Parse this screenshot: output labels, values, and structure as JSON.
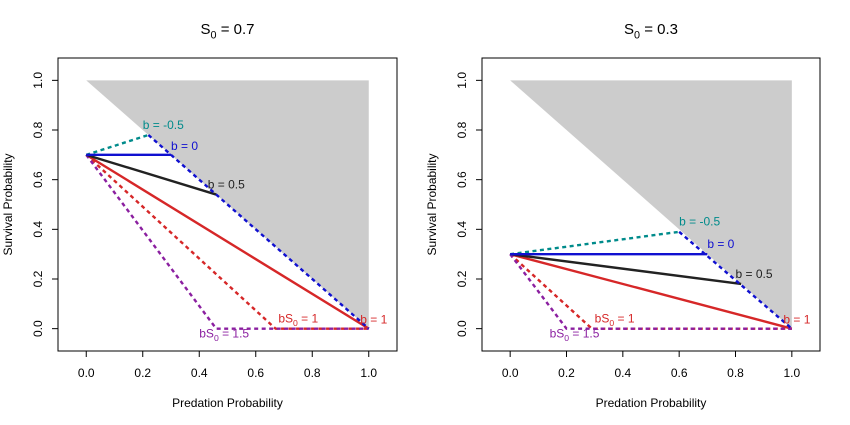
{
  "chart_data": [
    {
      "type": "line",
      "title_main": "S",
      "title_sub": "0",
      "title_rest": " = 0.7",
      "xlabel": "Predation Probability",
      "ylabel": "Survival Probability",
      "xlim": [
        -0.1,
        1.1
      ],
      "ylim": [
        -0.09,
        1.09
      ],
      "xticks": [
        "0.0",
        "0.2",
        "0.4",
        "0.6",
        "0.8",
        "1.0"
      ],
      "yticks": [
        "0.0",
        "0.2",
        "0.4",
        "0.6",
        "0.8",
        "1.0"
      ],
      "grid": false,
      "shaded_region": {
        "color": "#cccccc",
        "points": [
          [
            0,
            1
          ],
          [
            1,
            1
          ],
          [
            1,
            0
          ]
        ]
      },
      "series": [
        {
          "color": "#d62728",
          "style": "solid",
          "points": [
            [
              0,
              0.7
            ],
            [
              1,
              0
            ]
          ]
        },
        {
          "color": "#d62728",
          "style": "dashed",
          "points": [
            [
              0,
              0.7
            ],
            [
              0.67,
              0
            ],
            [
              1,
              0
            ]
          ]
        },
        {
          "color": "#8b1fa0",
          "style": "dashed",
          "points": [
            [
              0,
              0.7
            ],
            [
              0.46,
              0
            ],
            [
              1,
              0
            ]
          ]
        },
        {
          "color": "#222222",
          "style": "solid",
          "points": [
            [
              0,
              0.7
            ],
            [
              0.46,
              0.54
            ]
          ]
        },
        {
          "color": "#008b8b",
          "style": "dashed",
          "points": [
            [
              0,
              0.7
            ],
            [
              0.22,
              0.78
            ]
          ]
        },
        {
          "color": "#1010d0",
          "style": "solid",
          "points": [
            [
              0,
              0.7
            ],
            [
              0.3,
              0.7
            ]
          ]
        },
        {
          "color": "#1010d0",
          "style": "dashed",
          "points": [
            [
              0.22,
              0.78
            ],
            [
              1,
              0
            ]
          ]
        }
      ],
      "annotations": [
        {
          "text": "b = -0.5",
          "x": 0.2,
          "y": 0.805,
          "color": "#008b8b"
        },
        {
          "text": "b = 0",
          "x": 0.3,
          "y": 0.72,
          "color": "#1010d0"
        },
        {
          "text": "b = 0.5",
          "x": 0.43,
          "y": 0.565,
          "color": "#222222"
        },
        {
          "text": "b = 1",
          "x": 0.97,
          "y": 0.02,
          "color": "#d62728"
        }
      ],
      "sub_annotations": [
        {
          "main": "bS",
          "sub": "0",
          "rest": " = 1",
          "x": 0.68,
          "y": 0.025,
          "color": "#d62728"
        },
        {
          "main": "bS",
          "sub": "0",
          "rest": " = 1.5",
          "x": 0.4,
          "y": -0.035,
          "color": "#8b1fa0"
        }
      ]
    },
    {
      "type": "line",
      "title_main": "S",
      "title_sub": "0",
      "title_rest": " = 0.3",
      "xlabel": "Predation Probability",
      "ylabel": "Survival Probability",
      "xlim": [
        -0.1,
        1.1
      ],
      "ylim": [
        -0.09,
        1.09
      ],
      "xticks": [
        "0.0",
        "0.2",
        "0.4",
        "0.6",
        "0.8",
        "1.0"
      ],
      "yticks": [
        "0.0",
        "0.2",
        "0.4",
        "0.6",
        "0.8",
        "1.0"
      ],
      "grid": false,
      "shaded_region": {
        "color": "#cccccc",
        "points": [
          [
            0,
            1
          ],
          [
            1,
            1
          ],
          [
            1,
            0
          ]
        ]
      },
      "series": [
        {
          "color": "#d62728",
          "style": "solid",
          "points": [
            [
              0,
              0.3
            ],
            [
              1,
              0
            ]
          ]
        },
        {
          "color": "#d62728",
          "style": "dashed",
          "points": [
            [
              0,
              0.3
            ],
            [
              0.29,
              0
            ],
            [
              1,
              0
            ]
          ]
        },
        {
          "color": "#8b1fa0",
          "style": "dashed",
          "points": [
            [
              0,
              0.3
            ],
            [
              0.2,
              0
            ],
            [
              1,
              0
            ]
          ]
        },
        {
          "color": "#222222",
          "style": "solid",
          "points": [
            [
              0,
              0.3
            ],
            [
              0.82,
              0.18
            ]
          ]
        },
        {
          "color": "#008b8b",
          "style": "dashed",
          "points": [
            [
              0,
              0.3
            ],
            [
              0.6,
              0.39
            ]
          ]
        },
        {
          "color": "#1010d0",
          "style": "solid",
          "points": [
            [
              0,
              0.3
            ],
            [
              0.7,
              0.3
            ]
          ]
        },
        {
          "color": "#1010d0",
          "style": "dashed",
          "points": [
            [
              0.6,
              0.39
            ],
            [
              1,
              0
            ]
          ]
        }
      ],
      "annotations": [
        {
          "text": "b = -0.5",
          "x": 0.6,
          "y": 0.415,
          "color": "#008b8b"
        },
        {
          "text": "b = 0",
          "x": 0.7,
          "y": 0.325,
          "color": "#1010d0"
        },
        {
          "text": "b = 0.5",
          "x": 0.8,
          "y": 0.205,
          "color": "#222222"
        },
        {
          "text": "b = 1",
          "x": 0.97,
          "y": 0.02,
          "color": "#d62728"
        }
      ],
      "sub_annotations": [
        {
          "main": "bS",
          "sub": "0",
          "rest": " = 1",
          "x": 0.3,
          "y": 0.025,
          "color": "#d62728"
        },
        {
          "main": "bS",
          "sub": "0",
          "rest": " = 1.5",
          "x": 0.14,
          "y": -0.035,
          "color": "#8b1fa0"
        }
      ]
    }
  ]
}
